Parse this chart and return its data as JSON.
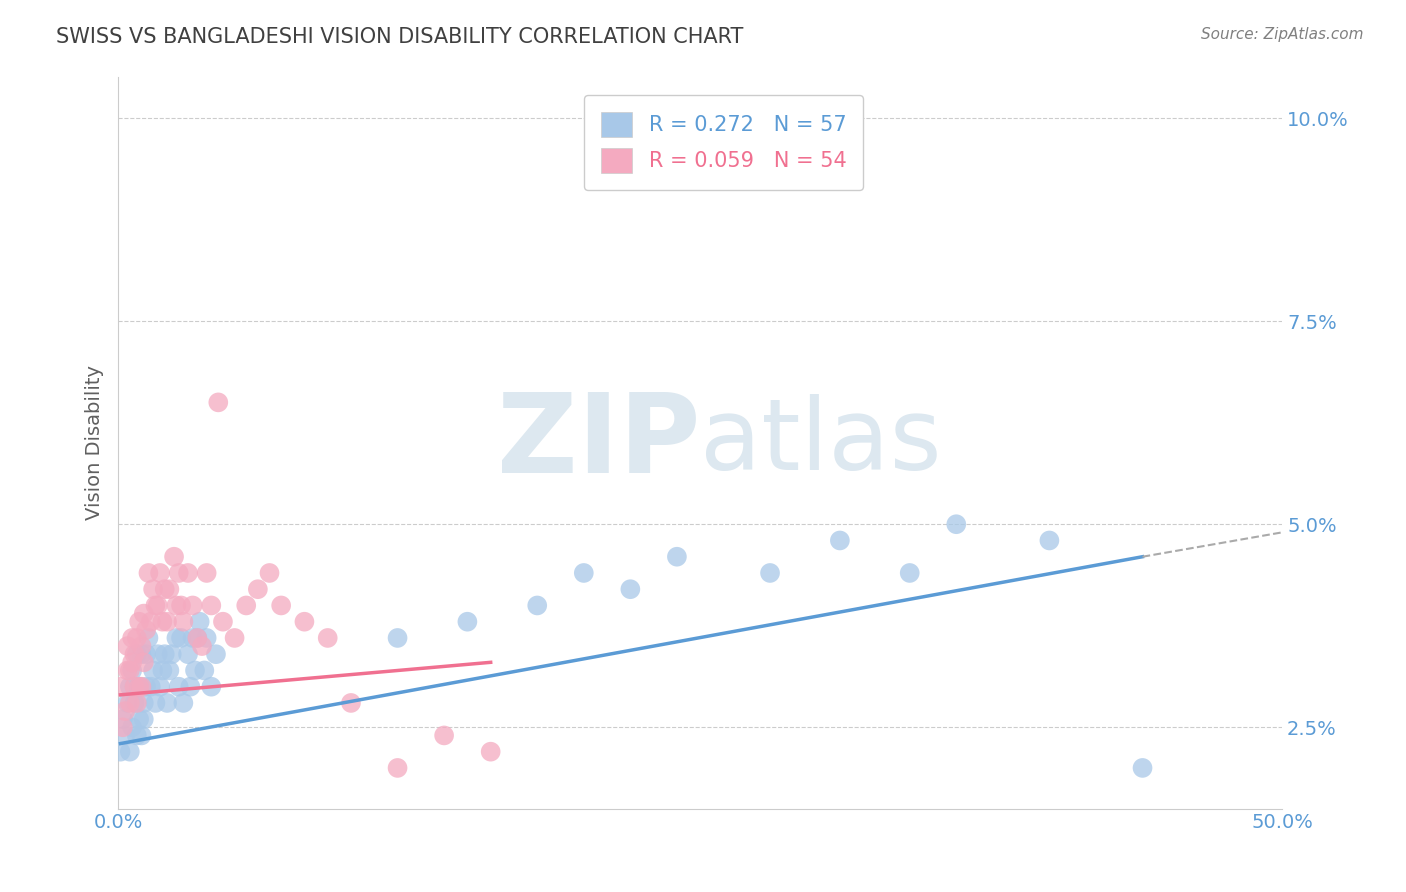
{
  "title": "SWISS VS BANGLADESHI VISION DISABILITY CORRELATION CHART",
  "source": "Source: ZipAtlas.com",
  "ylabel": "Vision Disability",
  "xlim": [
    0.0,
    0.5
  ],
  "ylim": [
    0.015,
    0.105
  ],
  "xticks": [
    0.0,
    0.05,
    0.1,
    0.15,
    0.2,
    0.25,
    0.3,
    0.35,
    0.4,
    0.45,
    0.5
  ],
  "ytick_positions": [
    0.025,
    0.05,
    0.075,
    0.1
  ],
  "ytick_labels": [
    "2.5%",
    "5.0%",
    "7.5%",
    "10.0%"
  ],
  "swiss_R": 0.272,
  "swiss_N": 57,
  "bangladeshi_R": 0.059,
  "bangladeshi_N": 54,
  "swiss_color": "#a8c8e8",
  "bangladeshi_color": "#f4aac0",
  "swiss_line_color": "#5b9bd5",
  "bangladeshi_line_color": "#f07090",
  "axis_color": "#5b9bd5",
  "grid_color": "#cccccc",
  "watermark_color": "#dde8f0",
  "swiss_x": [
    0.001,
    0.002,
    0.003,
    0.004,
    0.005,
    0.005,
    0.006,
    0.006,
    0.007,
    0.007,
    0.008,
    0.008,
    0.009,
    0.009,
    0.01,
    0.01,
    0.011,
    0.011,
    0.012,
    0.012,
    0.013,
    0.014,
    0.015,
    0.016,
    0.017,
    0.018,
    0.019,
    0.02,
    0.021,
    0.022,
    0.023,
    0.025,
    0.026,
    0.027,
    0.028,
    0.03,
    0.031,
    0.032,
    0.033,
    0.034,
    0.035,
    0.037,
    0.038,
    0.04,
    0.042,
    0.12,
    0.15,
    0.18,
    0.2,
    0.22,
    0.24,
    0.28,
    0.31,
    0.34,
    0.36,
    0.4,
    0.44
  ],
  "swiss_y": [
    0.022,
    0.026,
    0.024,
    0.028,
    0.022,
    0.03,
    0.025,
    0.032,
    0.028,
    0.03,
    0.024,
    0.034,
    0.026,
    0.03,
    0.024,
    0.034,
    0.026,
    0.028,
    0.03,
    0.034,
    0.036,
    0.03,
    0.032,
    0.028,
    0.034,
    0.03,
    0.032,
    0.034,
    0.028,
    0.032,
    0.034,
    0.036,
    0.03,
    0.036,
    0.028,
    0.034,
    0.03,
    0.036,
    0.032,
    0.036,
    0.038,
    0.032,
    0.036,
    0.03,
    0.034,
    0.036,
    0.038,
    0.04,
    0.044,
    0.042,
    0.046,
    0.044,
    0.048,
    0.044,
    0.05,
    0.048,
    0.02
  ],
  "bangladeshi_x": [
    0.001,
    0.002,
    0.003,
    0.004,
    0.004,
    0.005,
    0.005,
    0.006,
    0.006,
    0.007,
    0.007,
    0.008,
    0.008,
    0.009,
    0.009,
    0.01,
    0.01,
    0.011,
    0.011,
    0.012,
    0.013,
    0.014,
    0.015,
    0.016,
    0.017,
    0.018,
    0.019,
    0.02,
    0.021,
    0.022,
    0.024,
    0.025,
    0.026,
    0.027,
    0.028,
    0.03,
    0.032,
    0.034,
    0.036,
    0.038,
    0.04,
    0.043,
    0.045,
    0.05,
    0.055,
    0.06,
    0.065,
    0.07,
    0.08,
    0.09,
    0.1,
    0.12,
    0.14,
    0.16
  ],
  "bangladeshi_y": [
    0.03,
    0.025,
    0.027,
    0.032,
    0.035,
    0.028,
    0.032,
    0.033,
    0.036,
    0.03,
    0.034,
    0.028,
    0.036,
    0.03,
    0.038,
    0.03,
    0.035,
    0.039,
    0.033,
    0.037,
    0.044,
    0.038,
    0.042,
    0.04,
    0.04,
    0.044,
    0.038,
    0.042,
    0.038,
    0.042,
    0.046,
    0.04,
    0.044,
    0.04,
    0.038,
    0.044,
    0.04,
    0.036,
    0.035,
    0.044,
    0.04,
    0.065,
    0.038,
    0.036,
    0.04,
    0.042,
    0.044,
    0.04,
    0.038,
    0.036,
    0.028,
    0.02,
    0.024,
    0.022
  ],
  "swiss_trend_x": [
    0.001,
    0.44
  ],
  "swiss_trend_y": [
    0.023,
    0.046
  ],
  "bang_trend_x": [
    0.001,
    0.16
  ],
  "bang_trend_y": [
    0.029,
    0.033
  ],
  "ext_trend_x": [
    0.44,
    0.5
  ],
  "ext_trend_y": [
    0.046,
    0.049
  ]
}
